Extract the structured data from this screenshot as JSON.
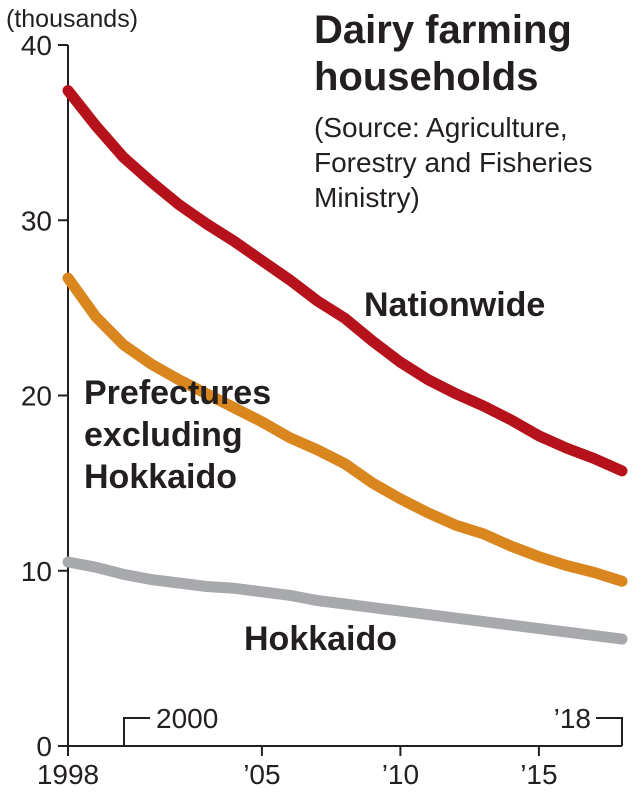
{
  "chart_data": {
    "type": "line",
    "title": "Dairy farming households",
    "subtitle_lines": [
      "(Source: Agriculture,",
      "Forestry and Fisheries",
      "Ministry)"
    ],
    "unit_label": "(thousands)",
    "ylim": [
      0,
      40
    ],
    "y_ticks": [
      "0",
      "10",
      "20",
      "30",
      "40"
    ],
    "xlim": [
      1998,
      2018
    ],
    "x_ticks": [
      {
        "value": 1998,
        "label": "1998"
      },
      {
        "value": 2005,
        "label": "’05"
      },
      {
        "value": 2010,
        "label": "’10"
      },
      {
        "value": 2015,
        "label": "’15"
      }
    ],
    "bracket_labels": {
      "start": "2000",
      "end": "’18"
    },
    "x": [
      1998,
      1999,
      2000,
      2001,
      2002,
      2003,
      2004,
      2005,
      2006,
      2007,
      2008,
      2009,
      2010,
      2011,
      2012,
      2013,
      2014,
      2015,
      2016,
      2017,
      2018
    ],
    "series": [
      {
        "name": "Nationwide",
        "label_lines": [
          "Nationwide"
        ],
        "color": "#b5121b",
        "values": [
          37.4,
          35.4,
          33.6,
          32.2,
          30.9,
          29.8,
          28.8,
          27.7,
          26.6,
          25.4,
          24.4,
          23.1,
          21.9,
          20.9,
          20.1,
          19.4,
          18.6,
          17.7,
          17.0,
          16.4,
          15.7
        ]
      },
      {
        "name": "Prefectures excluding Hokkaido",
        "label_lines": [
          "Prefectures",
          "excluding",
          "Hokkaido"
        ],
        "color": "#d9861f",
        "values": [
          26.7,
          24.5,
          22.9,
          21.8,
          20.9,
          20.1,
          19.3,
          18.5,
          17.6,
          16.9,
          16.1,
          15.0,
          14.1,
          13.3,
          12.6,
          12.1,
          11.4,
          10.8,
          10.3,
          9.9,
          9.4
        ]
      },
      {
        "name": "Hokkaido",
        "label_lines": [
          "Hokkaido"
        ],
        "color": "#a7a9ac",
        "values": [
          10.5,
          10.2,
          9.8,
          9.5,
          9.3,
          9.1,
          9.0,
          8.8,
          8.6,
          8.3,
          8.1,
          7.9,
          7.7,
          7.5,
          7.3,
          7.1,
          6.9,
          6.7,
          6.5,
          6.3,
          6.1
        ]
      }
    ],
    "grid": false,
    "legend": "inline labels"
  }
}
